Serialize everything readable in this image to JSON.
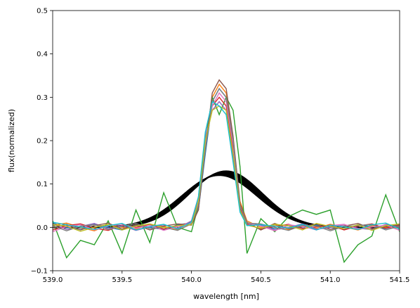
{
  "chart_data": {
    "type": "line",
    "title": "",
    "xlabel": "wavelength [nm]",
    "ylabel": "flux(normalized)",
    "xlim": [
      539.0,
      541.5
    ],
    "ylim": [
      -0.1,
      0.5
    ],
    "xticks": [
      "539.0",
      "539.5",
      "540.0",
      "540.5",
      "541.0",
      "541.5"
    ],
    "yticks": [
      "−0.1",
      "0.0",
      "0.1",
      "0.2",
      "0.3",
      "0.4",
      "0.5"
    ],
    "xtick_values": [
      539.0,
      539.5,
      540.0,
      540.5,
      541.0,
      541.5
    ],
    "ytick_values": [
      -0.1,
      0.0,
      0.1,
      0.2,
      0.3,
      0.4,
      0.5
    ],
    "grid": false,
    "legend": "none",
    "x": [
      539.0,
      539.1,
      539.2,
      539.3,
      539.4,
      539.5,
      539.6,
      539.7,
      539.8,
      539.9,
      540.0,
      540.05,
      540.1,
      540.15,
      540.2,
      540.25,
      540.3,
      540.35,
      540.4,
      540.5,
      540.6,
      540.7,
      540.8,
      540.9,
      541.0,
      541.1,
      541.2,
      541.3,
      541.4,
      541.5
    ],
    "series": [
      {
        "color": "#1f77b4",
        "values": [
          0.01,
          0.0,
          -0.005,
          0.008,
          0.0,
          -0.006,
          0.004,
          0.0,
          -0.005,
          0.006,
          0.01,
          0.04,
          0.17,
          0.29,
          0.32,
          0.3,
          0.19,
          0.05,
          0.01,
          0.005,
          -0.003,
          0.004,
          -0.002,
          0.005,
          0.0,
          -0.004,
          0.006,
          0.002,
          -0.003,
          0.005
        ]
      },
      {
        "color": "#ff7f0e",
        "values": [
          0.005,
          0.01,
          0.0,
          -0.008,
          0.006,
          0.0,
          -0.004,
          0.007,
          0.002,
          -0.006,
          0.008,
          0.05,
          0.19,
          0.3,
          0.33,
          0.31,
          0.2,
          0.06,
          0.015,
          0.0,
          0.006,
          -0.005,
          0.003,
          -0.002,
          0.007,
          0.001,
          -0.006,
          0.004,
          0.0,
          -0.002
        ]
      },
      {
        "color": "#2ca02c",
        "values": [
          0.015,
          -0.07,
          -0.03,
          -0.04,
          0.015,
          -0.06,
          0.04,
          -0.035,
          0.08,
          0.0,
          -0.01,
          0.05,
          0.2,
          0.3,
          0.26,
          0.3,
          0.27,
          0.14,
          -0.06,
          0.02,
          -0.01,
          0.025,
          0.04,
          0.03,
          0.04,
          -0.08,
          -0.04,
          -0.02,
          0.075,
          -0.01
        ]
      },
      {
        "color": "#d62728",
        "values": [
          -0.006,
          0.004,
          0.008,
          -0.002,
          -0.007,
          0.005,
          0.0,
          0.006,
          -0.004,
          0.003,
          0.012,
          0.06,
          0.2,
          0.28,
          0.3,
          0.28,
          0.18,
          0.045,
          0.008,
          -0.004,
          0.002,
          0.007,
          -0.003,
          0.001,
          0.005,
          -0.006,
          0.003,
          0.008,
          -0.002,
          0.004
        ]
      },
      {
        "color": "#9467bd",
        "values": [
          0.008,
          -0.005,
          0.002,
          0.009,
          -0.003,
          0.004,
          -0.007,
          0.001,
          0.006,
          -0.002,
          0.015,
          0.07,
          0.21,
          0.27,
          0.29,
          0.27,
          0.16,
          0.04,
          0.005,
          0.006,
          -0.006,
          0.0,
          0.008,
          -0.004,
          -0.001,
          0.006,
          -0.002,
          -0.005,
          0.007,
          0.0
        ]
      },
      {
        "color": "#8c564b",
        "values": [
          0.0,
          0.007,
          -0.006,
          0.004,
          0.01,
          -0.004,
          0.006,
          -0.006,
          0.003,
          0.008,
          0.005,
          0.04,
          0.18,
          0.31,
          0.34,
          0.32,
          0.21,
          0.055,
          0.012,
          -0.006,
          0.009,
          -0.003,
          0.001,
          0.008,
          -0.005,
          0.003,
          0.009,
          -0.003,
          0.002,
          0.006
        ]
      },
      {
        "color": "#e377c2",
        "values": [
          -0.01,
          0.002,
          0.006,
          -0.006,
          0.003,
          0.008,
          -0.002,
          0.005,
          -0.007,
          0.002,
          0.01,
          0.055,
          0.19,
          0.28,
          0.31,
          0.29,
          0.19,
          0.05,
          0.01,
          0.003,
          -0.008,
          0.006,
          0.002,
          -0.006,
          0.004,
          0.007,
          -0.004,
          0.001,
          0.005,
          -0.007
        ]
      },
      {
        "color": "#7f7f7f",
        "values": [
          0.004,
          -0.008,
          0.003,
          0.006,
          -0.005,
          0.002,
          0.009,
          -0.003,
          0.0,
          -0.007,
          0.008,
          0.05,
          0.18,
          0.29,
          0.32,
          0.3,
          0.2,
          0.05,
          0.01,
          0.008,
          0.0,
          -0.007,
          0.005,
          0.003,
          -0.008,
          0.002,
          0.004,
          0.007,
          -0.006,
          0.003
        ]
      },
      {
        "color": "#bcbd22",
        "values": [
          0.006,
          0.003,
          -0.009,
          0.0,
          0.007,
          -0.006,
          0.003,
          0.008,
          -0.001,
          0.004,
          0.006,
          0.06,
          0.2,
          0.27,
          0.28,
          0.27,
          0.17,
          0.04,
          0.005,
          -0.002,
          0.007,
          0.004,
          -0.006,
          0.009,
          0.002,
          -0.003,
          0.006,
          -0.007,
          0.004,
          0.008
        ]
      },
      {
        "color": "#17becf",
        "values": [
          0.012,
          0.006,
          0.001,
          -0.005,
          0.004,
          0.009,
          -0.006,
          0.002,
          0.007,
          -0.004,
          0.012,
          0.07,
          0.22,
          0.29,
          0.28,
          0.26,
          0.15,
          0.035,
          0.004,
          0.006,
          0.003,
          -0.002,
          0.007,
          -0.006,
          0.005,
          0.001,
          -0.005,
          0.006,
          0.01,
          -0.004
        ]
      }
    ],
    "gaussian_band": {
      "color": "#000000",
      "center_from": 540.2,
      "center_to": 540.25,
      "sigma_from": 0.27,
      "sigma_to": 0.26,
      "amp_from": 0.12,
      "amp_to": 0.13,
      "baseline": 0.0
    }
  }
}
